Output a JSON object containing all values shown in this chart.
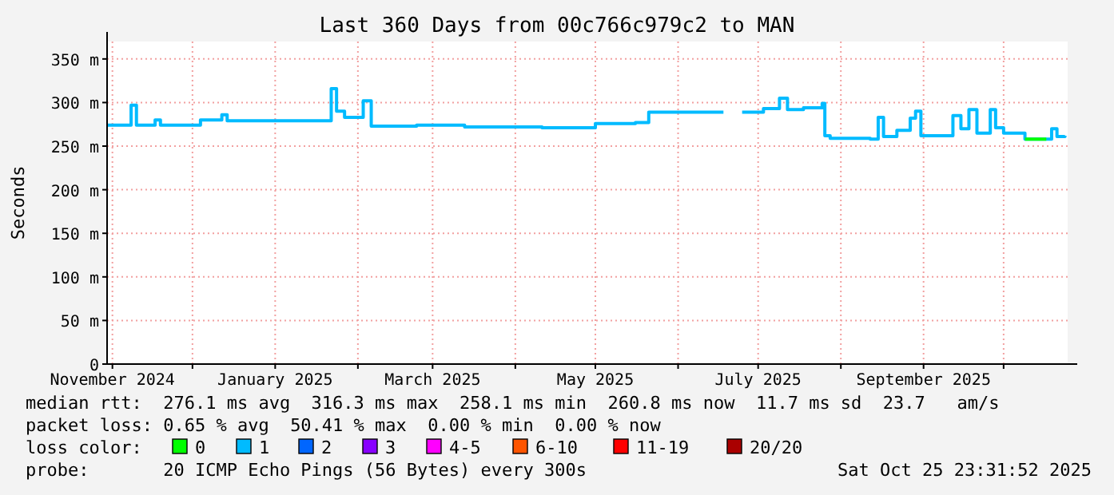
{
  "chart_data": {
    "type": "step",
    "title": "Last 360 Days from 00c766c979c2 to MAN",
    "ylabel": "Seconds",
    "legend_title": "loss color:",
    "legend": "bottom",
    "grid": true,
    "line_style": "solid",
    "marker": "none",
    "xlim": [
      "2024-10-30",
      "2025-10-25"
    ],
    "xticks": [
      {
        "value": "2024-11-01",
        "label": "November 2024"
      },
      {
        "value": "2024-12-01",
        "label": null
      },
      {
        "value": "2025-01-01",
        "label": "January 2025"
      },
      {
        "value": "2025-02-01",
        "label": null
      },
      {
        "value": "2025-03-01",
        "label": "March 2025"
      },
      {
        "value": "2025-04-01",
        "label": null
      },
      {
        "value": "2025-05-01",
        "label": "May 2025"
      },
      {
        "value": "2025-06-01",
        "label": null
      },
      {
        "value": "2025-07-01",
        "label": "July 2025"
      },
      {
        "value": "2025-08-01",
        "label": null
      },
      {
        "value": "2025-09-01",
        "label": "September 2025"
      },
      {
        "value": "2025-10-01",
        "label": null
      }
    ],
    "ylim": [
      0,
      370
    ],
    "yticks": [
      0,
      {
        "value": 50,
        "label": "50 m"
      },
      {
        "value": 100,
        "label": "100 m"
      },
      {
        "value": 150,
        "label": "150 m"
      },
      {
        "value": 200,
        "label": "200 m"
      },
      {
        "value": 250,
        "label": "250 m"
      },
      {
        "value": 300,
        "label": "300 m"
      },
      {
        "value": 350,
        "label": "350 m"
      }
    ],
    "series": [
      {
        "name": "0",
        "color": "#00ff00",
        "x": [
          "2025-10-09",
          "2025-10-13",
          "2025-10-17"
        ],
        "values": [
          258,
          258,
          258
        ]
      },
      {
        "name": "1",
        "color": "#00bbff",
        "x": [
          "2024-10-30",
          "2024-11-08",
          "2024-11-10",
          "2024-11-17",
          "2024-11-19",
          "2024-12-04",
          "2024-12-12",
          "2024-12-14",
          "2025-01-12",
          "2025-01-22",
          "2025-01-24",
          "2025-01-27",
          "2025-01-31",
          "2025-02-03",
          "2025-02-06",
          "2025-02-23",
          "2025-03-13",
          "2025-04-11",
          "2025-05-01",
          "2025-05-16",
          "2025-05-21",
          "2025-06-18",
          "2025-06-24",
          "2025-06-25",
          "2025-07-03",
          "2025-07-09",
          "2025-07-12",
          "2025-07-18",
          "2025-07-25",
          "2025-07-26",
          "2025-07-28",
          "2025-08-12",
          "2025-08-15",
          "2025-08-17",
          "2025-08-22",
          "2025-08-27",
          "2025-08-29",
          "2025-08-31",
          "2025-09-05",
          "2025-09-12",
          "2025-09-15",
          "2025-09-18",
          "2025-09-21",
          "2025-09-26",
          "2025-09-28",
          "2025-10-01",
          "2025-10-09",
          "2025-10-19",
          "2025-10-21",
          "2025-10-24"
        ],
        "values": [
          274,
          297,
          274,
          280,
          274,
          280,
          286,
          279,
          279,
          316,
          290,
          283,
          283,
          302,
          273,
          274,
          272,
          271,
          276,
          277,
          289,
          289,
          null,
          289,
          293,
          305,
          292,
          294,
          299,
          262,
          259,
          258,
          283,
          261,
          268,
          282,
          290,
          262,
          262,
          285,
          270,
          292,
          265,
          292,
          271,
          265,
          258,
          270,
          261,
          262
        ]
      },
      {
        "name": "2",
        "color": "#0066ff"
      },
      {
        "name": "3",
        "color": "#8800ff"
      },
      {
        "name": "4-5",
        "color": "#ff00ff"
      },
      {
        "name": "6-10",
        "color": "#ff5500"
      },
      {
        "name": "11-19",
        "color": "#ff0000"
      },
      {
        "name": "20/20",
        "color": "#aa0000"
      }
    ],
    "annotations": [
      "median rtt:  276.1 ms avg  316.3 ms max  258.1 ms min  260.8 ms now  11.7 ms sd  23.7   am/s",
      "packet loss: 0.65 % avg  50.41 % max  0.00 % min  0.00 % now",
      "probe:       20 ICMP Echo Pings (56 Bytes) every 300s",
      "Sat Oct 25 23:31:52 2025"
    ]
  }
}
